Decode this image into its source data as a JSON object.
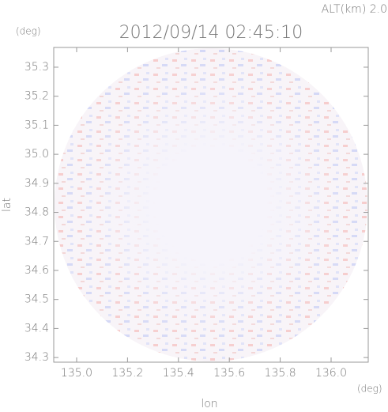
{
  "chart_data": {
    "type": "field",
    "title": "2012/09/14 02:45:10",
    "altitude_label": "ALT(km) 2.0",
    "x_label": "lon",
    "y_label": "lat",
    "x_unit": "(deg)",
    "y_unit": "(deg)",
    "xlim": [
      134.91,
      136.146
    ],
    "ylim": [
      34.284,
      35.368
    ],
    "xticks": [
      {
        "value": 135,
        "label": "135.0"
      },
      135.2,
      135.4,
      135.6,
      135.8,
      {
        "value": 136,
        "label": "136.0"
      }
    ],
    "yticks": [
      34.3,
      34.4,
      34.5,
      34.6,
      34.7,
      34.8,
      34.9,
      {
        "value": 35,
        "label": "35.0"
      },
      35.1,
      35.2,
      35.3
    ]
  }
}
